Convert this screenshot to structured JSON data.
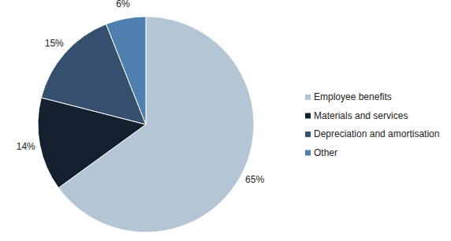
{
  "chart_data": {
    "type": "pie",
    "categories": [
      "Employee benefits",
      "Materials and services",
      "Depreciation and amortisation",
      "Other"
    ],
    "values": [
      65,
      14,
      15,
      6
    ],
    "value_labels": [
      "65%",
      "14%",
      "15%",
      "6%"
    ],
    "colors": [
      "#b4c6d6",
      "#14202e",
      "#34506e",
      "#4f7fae"
    ],
    "data_labels": true,
    "legend": "right"
  }
}
